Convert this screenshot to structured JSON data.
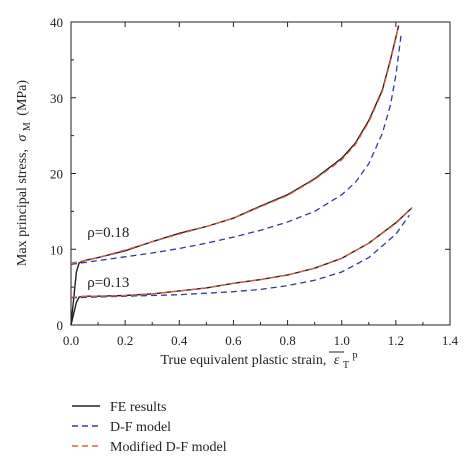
{
  "chart_data": {
    "type": "line",
    "xlabel": "True equivalent plastic strain,",
    "xlabel_symbol": "ε",
    "xlabel_sub": "T",
    "xlabel_sup": "p",
    "ylabel": "Max principal stress,",
    "ylabel_symbol": "σ",
    "ylabel_sub": "M",
    "ylabel_units": "(MPa)",
    "xlim": [
      0.0,
      1.4
    ],
    "ylim": [
      0,
      40
    ],
    "xticks": [
      0.0,
      0.2,
      0.4,
      0.6,
      0.8,
      1.0,
      1.2,
      1.4
    ],
    "xtick_labels": [
      "0.0",
      "0.2",
      "0.4",
      "0.6",
      "0.8",
      "1.0",
      "1.2",
      "1.4"
    ],
    "yticks": [
      0,
      10,
      20,
      30,
      40
    ],
    "ytick_labels": [
      "0",
      "10",
      "20",
      "30",
      "40"
    ],
    "grid": false,
    "legend_position": "bottom-left, below plot",
    "annotations": [
      {
        "text": "ρ=0.18",
        "x": 0.06,
        "y": 11.6
      },
      {
        "text": "ρ=0.13",
        "x": 0.06,
        "y": 5.0
      }
    ],
    "legend": [
      {
        "label": "FE results",
        "color": "#222222",
        "style": "solid"
      },
      {
        "label": "D-F model",
        "color": "#2e3a9e",
        "style": "dashed"
      },
      {
        "label": "Modified D-F model",
        "color": "#e0623a",
        "style": "dashed"
      }
    ],
    "series": [
      {
        "group": "ρ=0.18",
        "legend_index": 0,
        "color": "#222222",
        "style": "solid",
        "x": [
          0.0,
          0.02,
          0.03,
          0.05,
          0.1,
          0.2,
          0.3,
          0.4,
          0.5,
          0.6,
          0.7,
          0.8,
          0.9,
          1.0,
          1.05,
          1.1,
          1.15,
          1.18,
          1.2,
          1.21
        ],
        "y": [
          0.0,
          7.0,
          8.2,
          8.5,
          8.9,
          9.8,
          11.0,
          12.1,
          13.0,
          14.1,
          15.7,
          17.2,
          19.3,
          22.0,
          24.0,
          27.0,
          31.0,
          35.0,
          38.0,
          39.5
        ]
      },
      {
        "group": "ρ=0.18",
        "legend_index": 1,
        "color": "#2e3a9e",
        "style": "dashed",
        "x": [
          0.0,
          0.1,
          0.2,
          0.3,
          0.4,
          0.5,
          0.6,
          0.7,
          0.8,
          0.9,
          1.0,
          1.05,
          1.1,
          1.15,
          1.18,
          1.2,
          1.22
        ],
        "y": [
          8.0,
          8.5,
          9.0,
          9.5,
          10.1,
          10.8,
          11.6,
          12.5,
          13.6,
          15.0,
          17.2,
          18.8,
          21.3,
          25.3,
          29.0,
          33.0,
          38.5
        ]
      },
      {
        "group": "ρ=0.18",
        "legend_index": 2,
        "color": "#e0623a",
        "style": "dashed",
        "x": [
          0.0,
          0.02,
          0.05,
          0.1,
          0.2,
          0.3,
          0.4,
          0.5,
          0.6,
          0.7,
          0.8,
          0.9,
          1.0,
          1.05,
          1.1,
          1.15,
          1.18,
          1.2,
          1.21
        ],
        "y": [
          8.2,
          8.3,
          8.5,
          8.9,
          9.9,
          11.0,
          12.0,
          13.0,
          14.1,
          15.6,
          17.1,
          19.2,
          21.8,
          23.8,
          26.8,
          30.8,
          34.8,
          37.8,
          39.6
        ]
      },
      {
        "group": "ρ=0.13",
        "legend_index": 0,
        "color": "#222222",
        "style": "solid",
        "x": [
          0.0,
          0.02,
          0.03,
          0.05,
          0.1,
          0.2,
          0.3,
          0.4,
          0.5,
          0.6,
          0.7,
          0.8,
          0.9,
          1.0,
          1.1,
          1.2,
          1.26
        ],
        "y": [
          0.0,
          3.0,
          3.7,
          3.8,
          3.8,
          3.9,
          4.1,
          4.5,
          4.9,
          5.5,
          6.0,
          6.6,
          7.5,
          8.8,
          10.8,
          13.5,
          15.5
        ]
      },
      {
        "group": "ρ=0.13",
        "legend_index": 1,
        "color": "#2e3a9e",
        "style": "dashed",
        "x": [
          0.0,
          0.1,
          0.2,
          0.3,
          0.4,
          0.5,
          0.6,
          0.7,
          0.8,
          0.9,
          1.0,
          1.1,
          1.2,
          1.25
        ],
        "y": [
          3.6,
          3.7,
          3.8,
          3.9,
          4.0,
          4.2,
          4.4,
          4.7,
          5.2,
          5.9,
          7.0,
          8.9,
          12.0,
          14.5
        ]
      },
      {
        "group": "ρ=0.13",
        "legend_index": 2,
        "color": "#e0623a",
        "style": "dashed",
        "x": [
          0.0,
          0.02,
          0.05,
          0.1,
          0.2,
          0.3,
          0.4,
          0.5,
          0.6,
          0.7,
          0.8,
          0.9,
          1.0,
          1.1,
          1.2,
          1.26
        ],
        "y": [
          3.7,
          3.7,
          3.8,
          3.8,
          3.9,
          4.1,
          4.5,
          4.9,
          5.5,
          6.0,
          6.6,
          7.5,
          8.8,
          10.8,
          13.4,
          15.5
        ]
      }
    ]
  }
}
